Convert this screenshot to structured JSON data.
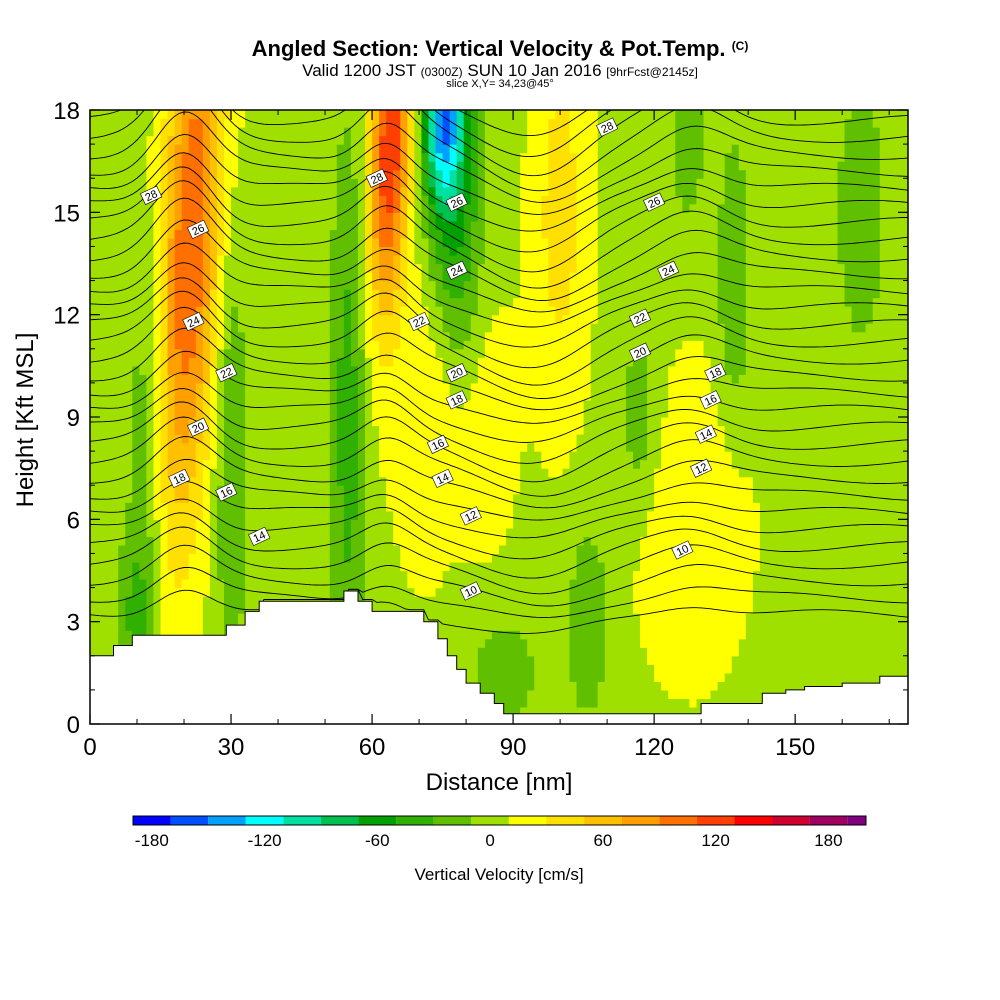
{
  "chart_data": {
    "type": "heatmap",
    "title": {
      "main": "Angled Section: Vertical Velocity & Pot.Temp.",
      "main_unit": "(C)",
      "valid_prefix": "Valid 1200 JST",
      "valid_zulu": "(0300Z)",
      "valid_date": "SUN 10 Jan 2016",
      "valid_fcst": "[9hrFcst@2145z]",
      "slice": "slice X,Y= 34,23@45°"
    },
    "xlabel": "Distance [nm]",
    "ylabel": "Height [Kft MSL]",
    "xlim": [
      0,
      174
    ],
    "ylim": [
      0,
      18
    ],
    "x_ticks": [
      "0",
      "30",
      "60",
      "90",
      "120",
      "150"
    ],
    "x_tick_values": [
      0,
      30,
      60,
      90,
      120,
      150
    ],
    "y_ticks": [
      "0",
      "3",
      "6",
      "9",
      "12",
      "15",
      "18"
    ],
    "y_tick_values": [
      0,
      3,
      6,
      9,
      12,
      15,
      18
    ],
    "colorbar": {
      "label": "Vertical Velocity [cm/s]",
      "min": -190,
      "max": 200,
      "tick_labels": [
        "-180",
        "-120",
        "-60",
        "0",
        "60",
        "120",
        "180"
      ],
      "tick_values": [
        -180,
        -120,
        -60,
        0,
        60,
        120,
        180
      ],
      "colors": [
        "#0000ff",
        "#0050ff",
        "#00a0ff",
        "#00ffff",
        "#00e0a0",
        "#00c050",
        "#00a000",
        "#30b000",
        "#60c000",
        "#a0e000",
        "#ffff00",
        "#ffe000",
        "#ffc000",
        "#ffa000",
        "#ff7000",
        "#ff4000",
        "#ff0000",
        "#d00030",
        "#a00060",
        "#800080"
      ],
      "bins": [
        -190,
        -170,
        -150,
        -130,
        -110,
        -90,
        -70,
        -50,
        -30,
        -10,
        10,
        30,
        50,
        70,
        90,
        110,
        130,
        150,
        170,
        190,
        200
      ]
    },
    "terrain": [
      [
        0,
        2.0
      ],
      [
        5,
        2.3
      ],
      [
        9,
        2.6
      ],
      [
        26,
        2.6
      ],
      [
        29,
        2.9
      ],
      [
        33,
        3.3
      ],
      [
        36,
        3.6
      ],
      [
        51,
        3.6
      ],
      [
        54,
        3.9
      ],
      [
        57,
        3.6
      ],
      [
        60,
        3.3
      ],
      [
        67,
        3.3
      ],
      [
        71,
        3.0
      ],
      [
        74,
        2.5
      ],
      [
        76,
        2.0
      ],
      [
        78,
        1.6
      ],
      [
        80,
        1.2
      ],
      [
        83,
        0.9
      ],
      [
        86,
        0.6
      ],
      [
        88,
        0.3
      ],
      [
        124,
        0.3
      ],
      [
        130,
        0.6
      ],
      [
        143,
        0.9
      ],
      [
        148,
        1.0
      ],
      [
        152,
        1.1
      ],
      [
        160,
        1.2
      ],
      [
        168,
        1.4
      ],
      [
        174,
        1.6
      ]
    ],
    "theta_labels": [
      {
        "text": "28",
        "x": 13,
        "y": 15.5
      },
      {
        "text": "26",
        "x": 23,
        "y": 14.5
      },
      {
        "text": "24",
        "x": 22,
        "y": 11.8
      },
      {
        "text": "22",
        "x": 29,
        "y": 10.3
      },
      {
        "text": "20",
        "x": 23,
        "y": 8.7
      },
      {
        "text": "18",
        "x": 19,
        "y": 7.2
      },
      {
        "text": "16",
        "x": 29,
        "y": 6.8
      },
      {
        "text": "14",
        "x": 36,
        "y": 5.5
      },
      {
        "text": "28",
        "x": 61,
        "y": 16.0
      },
      {
        "text": "26",
        "x": 78,
        "y": 15.3
      },
      {
        "text": "24",
        "x": 78,
        "y": 13.3
      },
      {
        "text": "22",
        "x": 70,
        "y": 11.8
      },
      {
        "text": "20",
        "x": 78,
        "y": 10.3
      },
      {
        "text": "18",
        "x": 78,
        "y": 9.5
      },
      {
        "text": "16",
        "x": 74,
        "y": 8.2
      },
      {
        "text": "14",
        "x": 75,
        "y": 7.2
      },
      {
        "text": "12",
        "x": 81,
        "y": 6.1
      },
      {
        "text": "10",
        "x": 81,
        "y": 3.9
      },
      {
        "text": "28",
        "x": 110,
        "y": 17.5
      },
      {
        "text": "26",
        "x": 120,
        "y": 15.3
      },
      {
        "text": "24",
        "x": 123,
        "y": 13.3
      },
      {
        "text": "22",
        "x": 117,
        "y": 11.9
      },
      {
        "text": "20",
        "x": 117,
        "y": 10.9
      },
      {
        "text": "18",
        "x": 133,
        "y": 10.3
      },
      {
        "text": "16",
        "x": 132,
        "y": 9.5
      },
      {
        "text": "14",
        "x": 131,
        "y": 8.5
      },
      {
        "text": "12",
        "x": 130,
        "y": 7.5
      },
      {
        "text": "10",
        "x": 126,
        "y": 5.1
      }
    ]
  }
}
